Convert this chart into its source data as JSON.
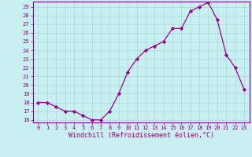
{
  "x": [
    0,
    1,
    2,
    3,
    4,
    5,
    6,
    7,
    8,
    9,
    10,
    11,
    12,
    13,
    14,
    15,
    16,
    17,
    18,
    19,
    20,
    21,
    22,
    23
  ],
  "y": [
    18,
    18,
    17.5,
    17,
    17,
    16.5,
    16,
    16,
    17,
    19,
    21.5,
    23,
    24,
    24.5,
    25,
    26.5,
    26.5,
    28.5,
    29,
    29.5,
    27.5,
    23.5,
    22,
    19.5
  ],
  "ylim_min": 15.7,
  "ylim_max": 29.6,
  "yticks": [
    16,
    17,
    18,
    19,
    20,
    21,
    22,
    23,
    24,
    25,
    26,
    27,
    28,
    29
  ],
  "xticks": [
    0,
    1,
    2,
    3,
    4,
    5,
    6,
    7,
    8,
    9,
    10,
    11,
    12,
    13,
    14,
    15,
    16,
    17,
    18,
    19,
    20,
    21,
    22,
    23
  ],
  "xlabel": "Windchill (Refroidissement éolien,°C)",
  "line_color": "#990099",
  "marker": "D",
  "marker_size": 2.2,
  "marker_linewidth": 0.5,
  "bg_color": "#c8f0f0",
  "grid_color": "#a8d8d8",
  "axis_color": "#880088",
  "tick_label_color": "#880088",
  "xlabel_color": "#880088",
  "tick_fontsize": 5.0,
  "xlabel_fontsize": 6.0,
  "linewidth": 0.9
}
